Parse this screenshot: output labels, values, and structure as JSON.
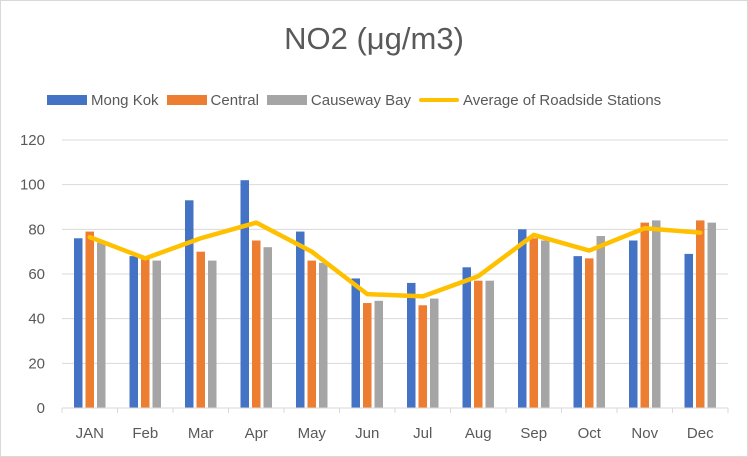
{
  "chart_data": {
    "type": "bar",
    "title": "NO2 (μg/m3)",
    "xlabel": "",
    "ylabel": "",
    "ylim": [
      0,
      120
    ],
    "yticks": [
      0,
      20,
      40,
      60,
      80,
      100,
      120
    ],
    "grid": true,
    "legend_position": "top",
    "categories": [
      "JAN",
      "Feb",
      "Mar",
      "Apr",
      "May",
      "Jun",
      "Jul",
      "Aug",
      "Sep",
      "Oct",
      "Nov",
      "Dec"
    ],
    "series": [
      {
        "name": "Mong Kok",
        "type": "bar",
        "color": "#4472c4",
        "values": [
          76,
          68,
          93,
          102,
          79,
          58,
          56,
          63,
          80,
          68,
          75,
          69
        ]
      },
      {
        "name": "Central",
        "type": "bar",
        "color": "#ed7d31",
        "values": [
          79,
          67,
          70,
          75,
          66,
          47,
          46,
          57,
          76,
          67,
          83,
          84
        ]
      },
      {
        "name": "Causeway Bay",
        "type": "bar",
        "color": "#a5a5a5",
        "values": [
          74,
          66,
          66,
          72,
          65,
          48,
          49,
          57,
          75,
          77,
          84,
          83
        ]
      },
      {
        "name": "Average of Roadside Stations",
        "type": "line",
        "color": "#ffc000",
        "values": [
          76.5,
          67,
          76,
          83,
          70,
          51,
          50,
          59,
          77.5,
          70.5,
          80.5,
          78.5
        ]
      }
    ]
  }
}
